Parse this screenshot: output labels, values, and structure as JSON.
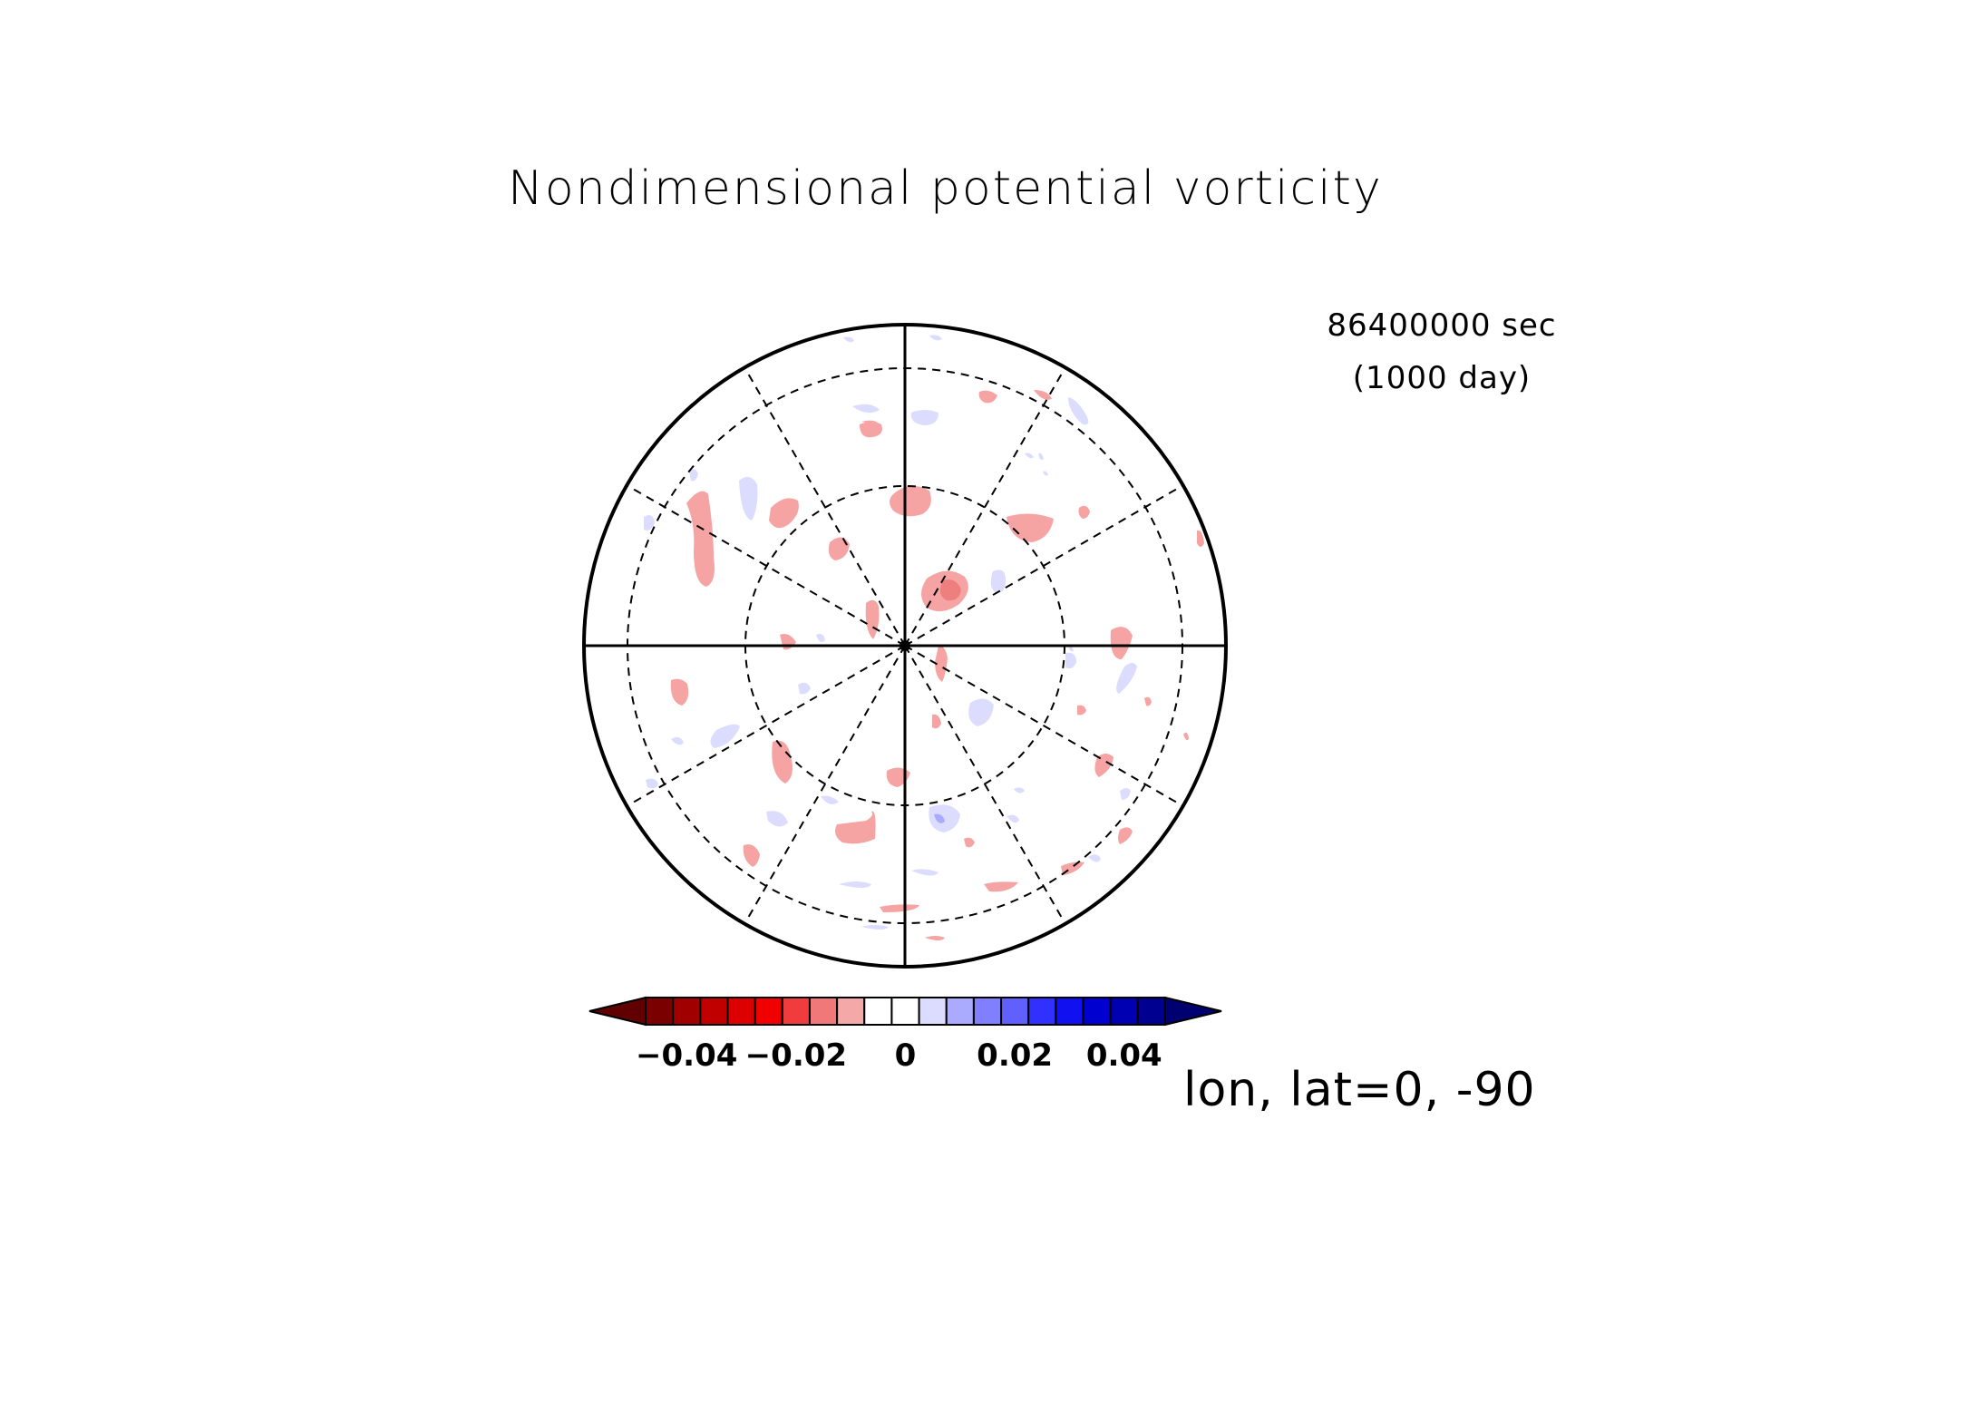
{
  "figure": {
    "title": "Nondimensional potential vorticity",
    "time_sec": "86400000 sec",
    "time_day": "(1000 day)",
    "axes_info": "lon, lat=0, -90"
  },
  "map": {
    "projection": "polar stereographic (south pole)",
    "graticule": "dashed",
    "meridian_count": 12,
    "latitude_circles": 2
  },
  "colorbar": {
    "tick_labels": [
      "−0.04",
      "−0.02",
      "0",
      "0.02",
      "0.04"
    ],
    "tick_values": [
      -0.04,
      -0.02,
      0,
      0.02,
      0.04
    ],
    "colors": [
      "#7a0000",
      "#a00000",
      "#c00000",
      "#dc0000",
      "#f00000",
      "#f03c3c",
      "#f07878",
      "#f4a8a8",
      "#ffffff",
      "#ffffff",
      "#dcdcff",
      "#aaaaff",
      "#8080ff",
      "#6060ff",
      "#3030ff",
      "#1010f0",
      "#0000d0",
      "#0000b0",
      "#000090"
    ],
    "under_color": "#600000",
    "over_color": "#000070",
    "levels": [
      -0.045,
      -0.04,
      -0.035,
      -0.03,
      -0.025,
      -0.02,
      -0.015,
      -0.01,
      -0.005,
      0,
      0.005,
      0.01,
      0.015,
      0.02,
      0.025,
      0.03,
      0.035,
      0.04,
      0.045
    ]
  }
}
